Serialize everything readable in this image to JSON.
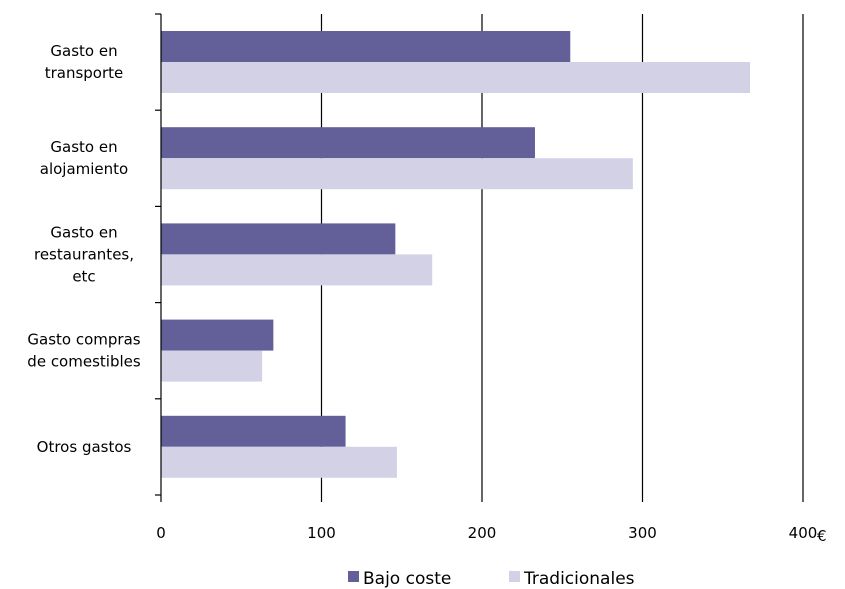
{
  "chart_data": {
    "type": "bar",
    "orientation": "horizontal",
    "categories": [
      [
        "Gasto en",
        "transporte"
      ],
      [
        "Gasto en",
        "alojamiento"
      ],
      [
        "Gasto en",
        "restaurantes,",
        "etc"
      ],
      [
        "Gasto compras",
        "de comestibles"
      ],
      [
        "Otros gastos"
      ]
    ],
    "series": [
      {
        "name": "Bajo coste",
        "color": "#635f98",
        "values": [
          255,
          233,
          146,
          70,
          115
        ]
      },
      {
        "name": "Tradicionales",
        "color": "#d3d1e6",
        "values": [
          367,
          294,
          169,
          63,
          147
        ]
      }
    ],
    "xlim": [
      0,
      400
    ],
    "xticks": [
      "0",
      "100",
      "200",
      "300",
      "400"
    ],
    "xunit": "€",
    "grid": true,
    "legend_position": "bottom"
  }
}
